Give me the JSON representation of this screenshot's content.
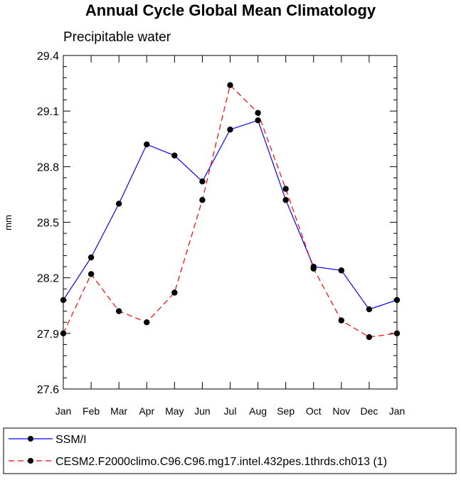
{
  "chart_data": {
    "type": "line",
    "title": "Annual Cycle Global Mean Climatology",
    "subtitle": "Precipitable water",
    "xlabel": "",
    "ylabel": "mm",
    "categories": [
      "Jan",
      "Feb",
      "Mar",
      "Apr",
      "May",
      "Jun",
      "Jul",
      "Aug",
      "Sep",
      "Oct",
      "Nov",
      "Dec",
      "Jan"
    ],
    "ylim": [
      27.6,
      29.4
    ],
    "yticks": [
      "27.6",
      "27.9",
      "28.2",
      "28.5",
      "28.8",
      "29.1",
      "29.4"
    ],
    "grid": false,
    "legend_position": "bottom",
    "series": [
      {
        "name": "SSM/I",
        "color": "#0000ff",
        "line_style": "solid",
        "values": [
          28.08,
          28.31,
          28.6,
          28.92,
          28.86,
          28.72,
          29.0,
          29.05,
          28.62,
          28.26,
          28.24,
          28.03,
          28.08
        ]
      },
      {
        "name": "CESM2.F2000climo.C96.C96.mg17.intel.432pes.1thrds.ch013 (1)",
        "color": "#ff0000",
        "line_style": "dashed",
        "values": [
          27.9,
          28.22,
          28.02,
          27.96,
          28.12,
          28.62,
          29.24,
          29.09,
          28.68,
          28.25,
          27.97,
          27.88,
          27.9
        ]
      }
    ]
  }
}
